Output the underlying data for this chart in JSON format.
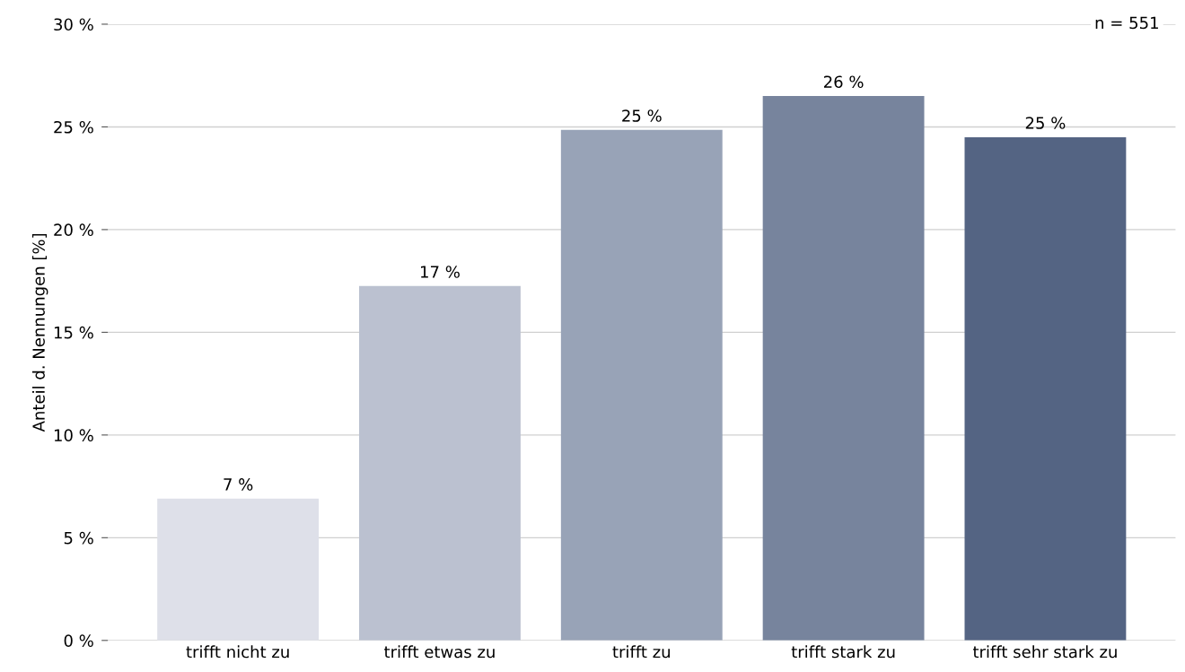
{
  "chart_data": {
    "type": "bar",
    "ylabel": "Anteil d. Nennungen [%]",
    "categories": [
      "trifft nicht zu",
      "trifft etwas zu",
      "trifft zu",
      "trifft stark zu",
      "trifft sehr stark zu"
    ],
    "values": [
      6.9,
      17.25,
      24.85,
      26.5,
      24.5
    ],
    "colors": [
      "#dee0e9",
      "#bbc1d0",
      "#98a3b7",
      "#77849d",
      "#546483"
    ],
    "value_labels": [
      "7 %",
      "17 %",
      "25 %",
      "26 %",
      "25 %"
    ],
    "ylim": [
      0,
      30
    ],
    "yticks": [
      {
        "value": 0,
        "label": "0 %"
      },
      {
        "value": 5,
        "label": "5 %"
      },
      {
        "value": 10,
        "label": "10 %"
      },
      {
        "value": 15,
        "label": "15 %"
      },
      {
        "value": 20,
        "label": "20 %"
      },
      {
        "value": 25,
        "label": "25 %"
      },
      {
        "value": 30,
        "label": "30 %"
      }
    ],
    "grid": "y",
    "annotations": [
      "n = 551"
    ]
  }
}
